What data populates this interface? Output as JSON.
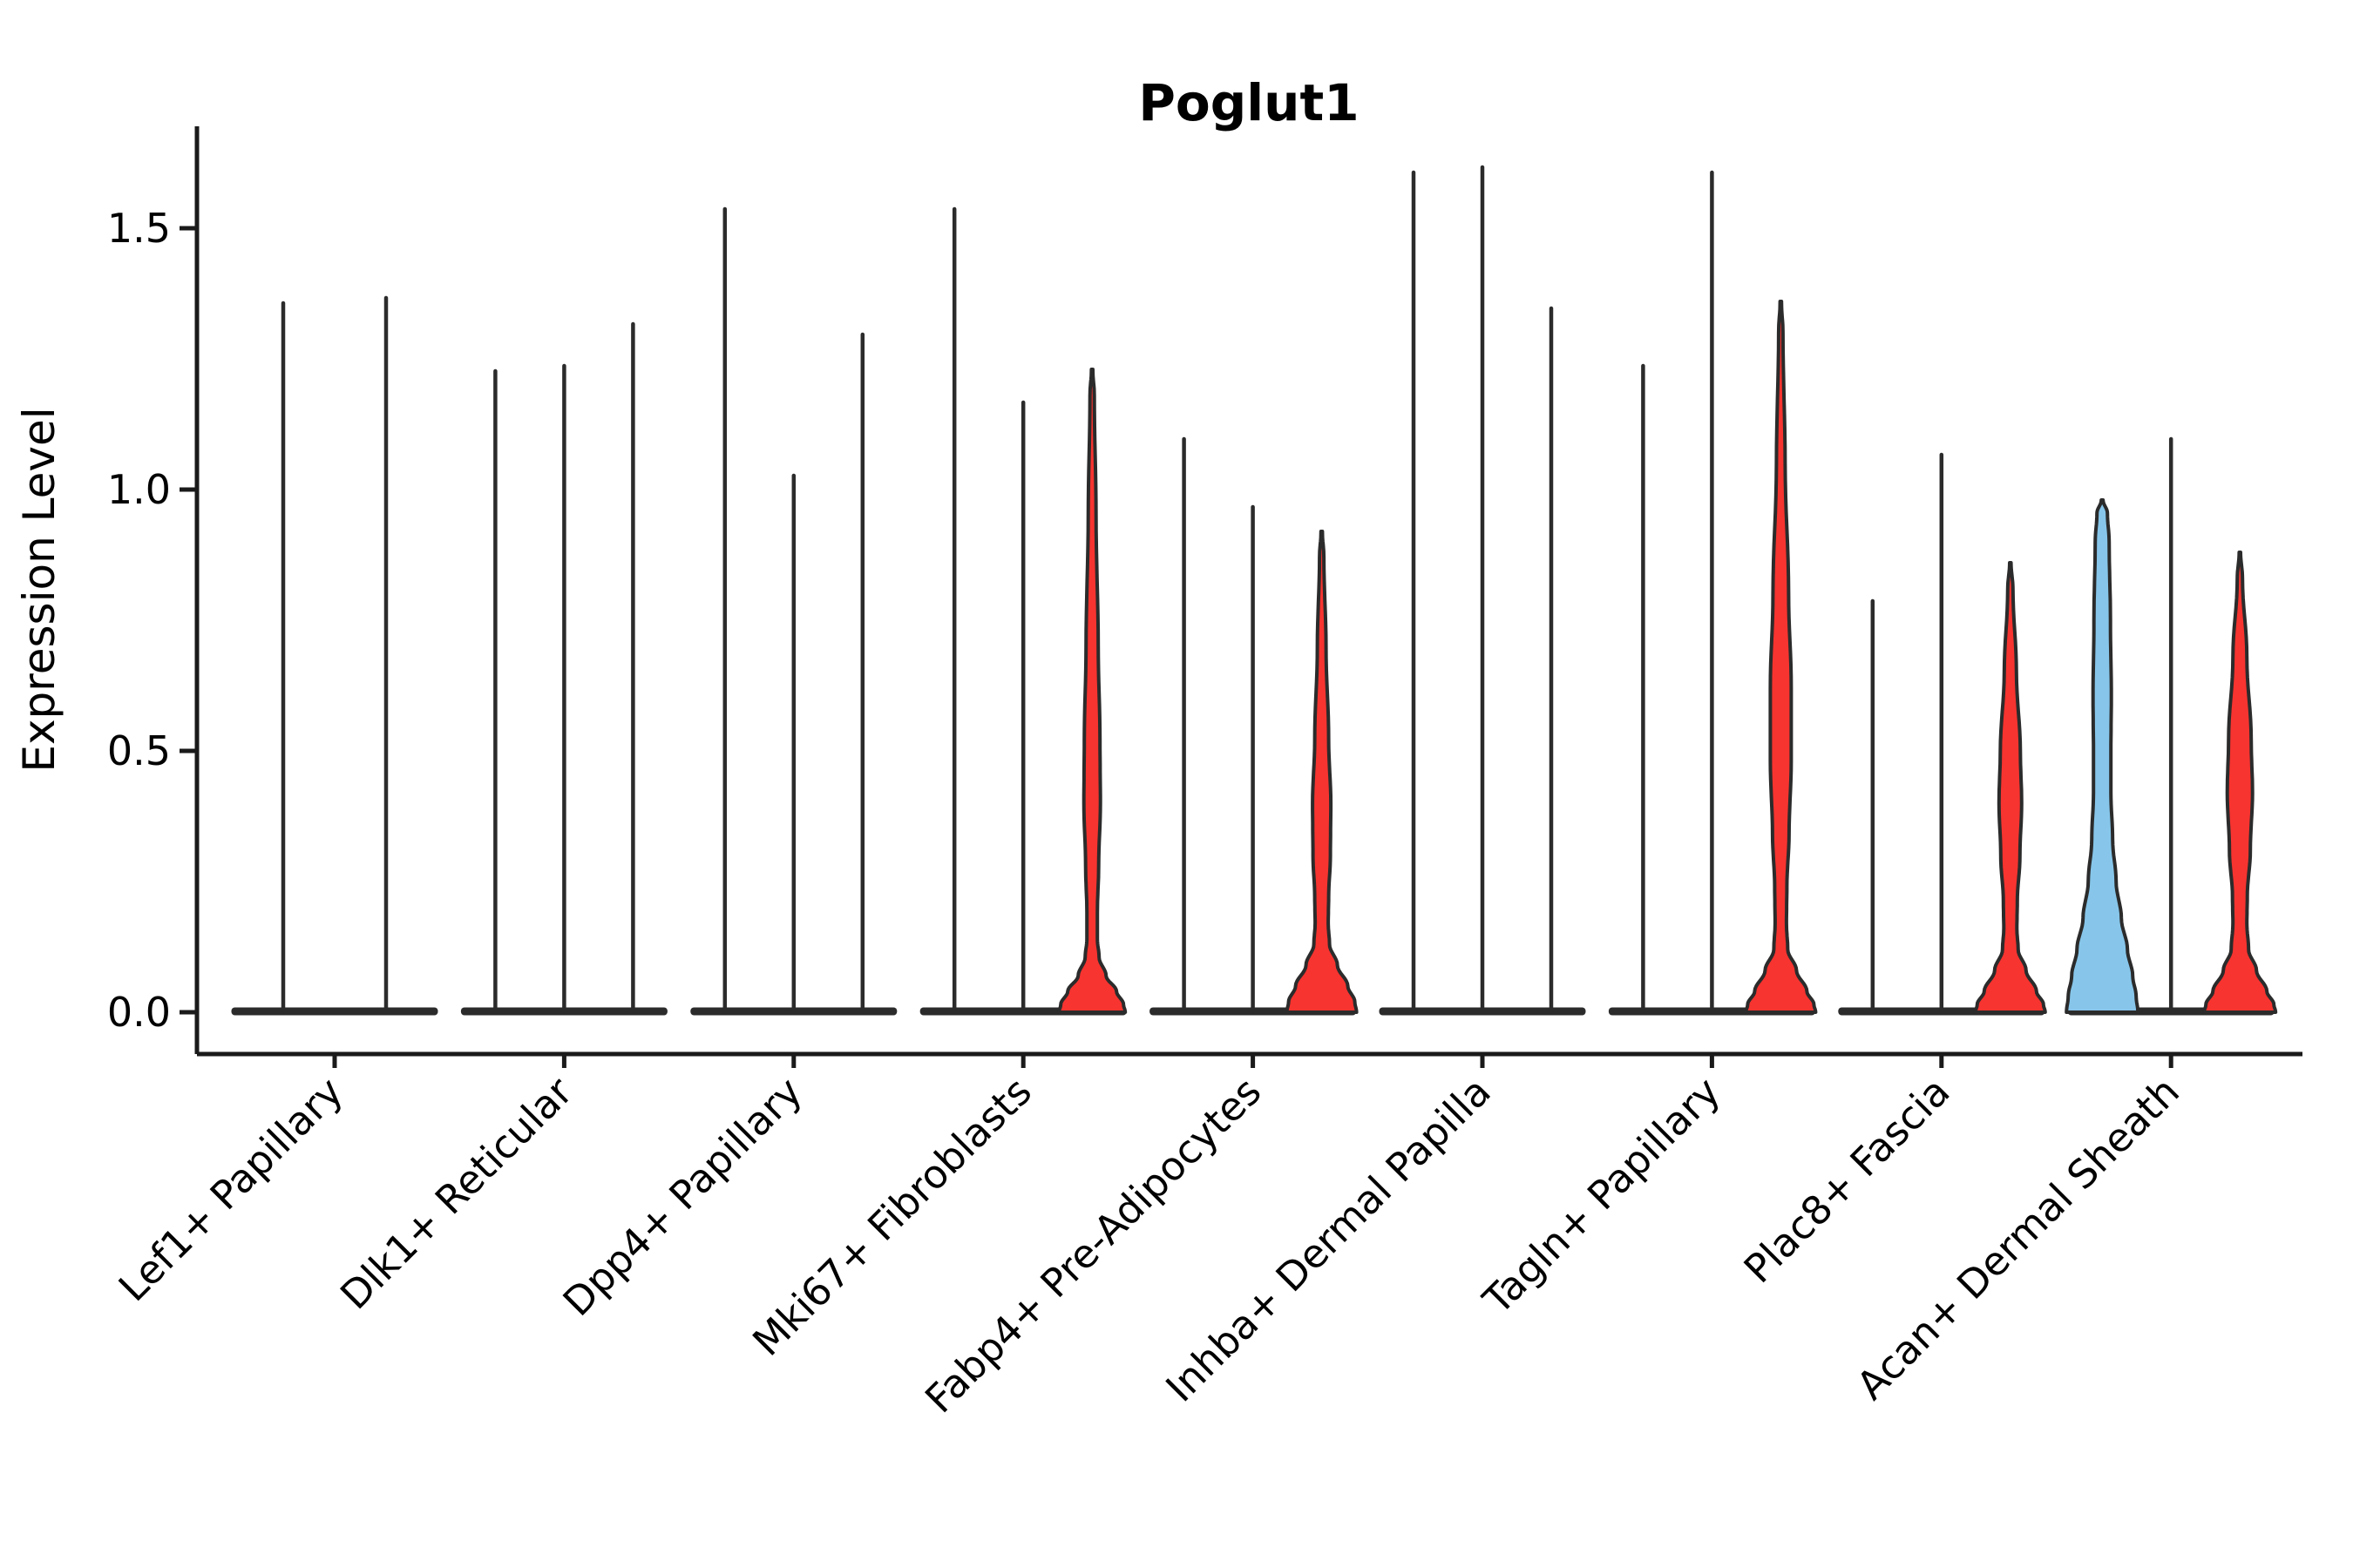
{
  "figure": {
    "title": "Poglut1",
    "ylabel": "Expression Level"
  },
  "chart_data": {
    "type": "violin",
    "title": "Poglut1",
    "xlabel": "",
    "ylabel": "Expression Level",
    "ylim": [
      -0.08,
      1.7
    ],
    "grid": false,
    "legend": "none",
    "yticks": [
      {
        "v": 0.0,
        "label": "0.0"
      },
      {
        "v": 0.5,
        "label": "0.5"
      },
      {
        "v": 1.0,
        "label": "1.0"
      },
      {
        "v": 1.5,
        "label": "1.5"
      }
    ],
    "colors": {
      "red": "#f73430",
      "blue": "#87c6ea",
      "spike": "#2b2b2b",
      "outline": "#2b2b2b",
      "axis": "#1a1a1a"
    },
    "categories": [
      "Lef1+ Papillary",
      "Dlk1+ Reticular",
      "Dpp4+ Papillary",
      "Mki67+ Fibroblasts",
      "Fabp4+ Pre-Adipocytes",
      "Inhba+ Dermal Papilla",
      "Tagln+ Papillary",
      "Plac8+ Fascia",
      "Acan+ Dermal Sheath"
    ],
    "groups": [
      {
        "label": "Lef1+ Papillary",
        "violins": [
          {
            "max": 1.36,
            "style": "spike"
          },
          {
            "max": 1.37,
            "style": "spike"
          }
        ]
      },
      {
        "label": "Dlk1+ Reticular",
        "violins": [
          {
            "max": 1.23,
            "style": "spike"
          },
          {
            "max": 1.24,
            "style": "spike"
          },
          {
            "max": 1.32,
            "style": "spike"
          }
        ]
      },
      {
        "label": "Dpp4+ Papillary",
        "violins": [
          {
            "max": 1.54,
            "style": "spike"
          },
          {
            "max": 1.03,
            "style": "spike"
          },
          {
            "max": 1.3,
            "style": "spike"
          }
        ]
      },
      {
        "label": "Mki67+ Fibroblasts",
        "violins": [
          {
            "max": 1.54,
            "style": "spike"
          },
          {
            "max": 1.17,
            "style": "spike"
          },
          {
            "max": 1.23,
            "style": "red",
            "profile": [
              [
                1.23,
                0.8
              ],
              [
                1.18,
                2.5
              ],
              [
                0.95,
                4.5
              ],
              [
                0.7,
                7
              ],
              [
                0.52,
                9
              ],
              [
                0.4,
                9.5
              ],
              [
                0.28,
                7.5
              ],
              [
                0.19,
                6
              ],
              [
                0.14,
                6
              ],
              [
                0.105,
                8
              ],
              [
                0.07,
                16
              ],
              [
                0.04,
                28
              ],
              [
                0.015,
                36
              ],
              [
                0,
                38
              ]
            ]
          }
        ]
      },
      {
        "label": "Fabp4+ Pre-Adipocytes",
        "violins": [
          {
            "max": 1.1,
            "style": "spike"
          },
          {
            "max": 0.97,
            "style": "spike"
          },
          {
            "max": 0.92,
            "style": "red",
            "profile": [
              [
                0.92,
                0.8
              ],
              [
                0.87,
                2.5
              ],
              [
                0.7,
                5
              ],
              [
                0.52,
                8
              ],
              [
                0.4,
                10.5
              ],
              [
                0.3,
                10
              ],
              [
                0.22,
                8
              ],
              [
                0.17,
                7.5
              ],
              [
                0.13,
                9
              ],
              [
                0.09,
                18
              ],
              [
                0.05,
                30
              ],
              [
                0.02,
                38
              ],
              [
                0,
                40
              ]
            ]
          }
        ]
      },
      {
        "label": "Inhba+ Dermal Papilla",
        "violins": [
          {
            "max": 1.61,
            "style": "spike"
          },
          {
            "max": 1.62,
            "style": "spike"
          },
          {
            "max": 1.35,
            "style": "spike"
          }
        ]
      },
      {
        "label": "Tagln+ Papillary",
        "violins": [
          {
            "max": 1.24,
            "style": "spike"
          },
          {
            "max": 1.61,
            "style": "spike"
          },
          {
            "max": 1.36,
            "style": "red",
            "profile": [
              [
                1.36,
                0.8
              ],
              [
                1.3,
                2.5
              ],
              [
                1.05,
                5
              ],
              [
                0.8,
                9
              ],
              [
                0.62,
                12
              ],
              [
                0.48,
                12
              ],
              [
                0.34,
                9.5
              ],
              [
                0.24,
                7
              ],
              [
                0.17,
                6.5
              ],
              [
                0.12,
                8
              ],
              [
                0.08,
                18
              ],
              [
                0.04,
                30
              ],
              [
                0.015,
                38
              ],
              [
                0,
                40
              ]
            ]
          }
        ]
      },
      {
        "label": "Plac8+ Fascia",
        "violins": [
          {
            "max": 0.79,
            "style": "spike"
          },
          {
            "max": 1.07,
            "style": "spike"
          },
          {
            "max": 0.86,
            "style": "red",
            "profile": [
              [
                0.86,
                0.8
              ],
              [
                0.81,
                3
              ],
              [
                0.65,
                7
              ],
              [
                0.5,
                11.5
              ],
              [
                0.4,
                13
              ],
              [
                0.3,
                11
              ],
              [
                0.21,
                8
              ],
              [
                0.16,
                7.5
              ],
              [
                0.12,
                9
              ],
              [
                0.08,
                18
              ],
              [
                0.04,
                30
              ],
              [
                0.015,
                38
              ],
              [
                0,
                40
              ]
            ]
          }
        ]
      },
      {
        "label": "Acan+ Dermal Sheath",
        "violins": [
          {
            "max": 0.98,
            "style": "blue",
            "profile": [
              [
                0.98,
                1
              ],
              [
                0.955,
                6
              ],
              [
                0.9,
                8
              ],
              [
                0.75,
                9.5
              ],
              [
                0.6,
                10.5
              ],
              [
                0.5,
                10
              ],
              [
                0.42,
                10
              ],
              [
                0.33,
                12
              ],
              [
                0.25,
                16
              ],
              [
                0.18,
                22
              ],
              [
                0.12,
                29
              ],
              [
                0.07,
                35
              ],
              [
                0.03,
                39
              ],
              [
                0,
                41
              ]
            ]
          },
          {
            "max": 1.1,
            "style": "spike"
          },
          {
            "max": 0.88,
            "style": "red",
            "profile": [
              [
                0.88,
                0.8
              ],
              [
                0.83,
                3
              ],
              [
                0.68,
                8
              ],
              [
                0.52,
                13
              ],
              [
                0.42,
                14.5
              ],
              [
                0.31,
                12
              ],
              [
                0.22,
                8.5
              ],
              [
                0.17,
                8
              ],
              [
                0.12,
                10
              ],
              [
                0.08,
                19
              ],
              [
                0.04,
                31
              ],
              [
                0.015,
                39
              ],
              [
                0,
                41
              ]
            ]
          }
        ]
      }
    ]
  }
}
